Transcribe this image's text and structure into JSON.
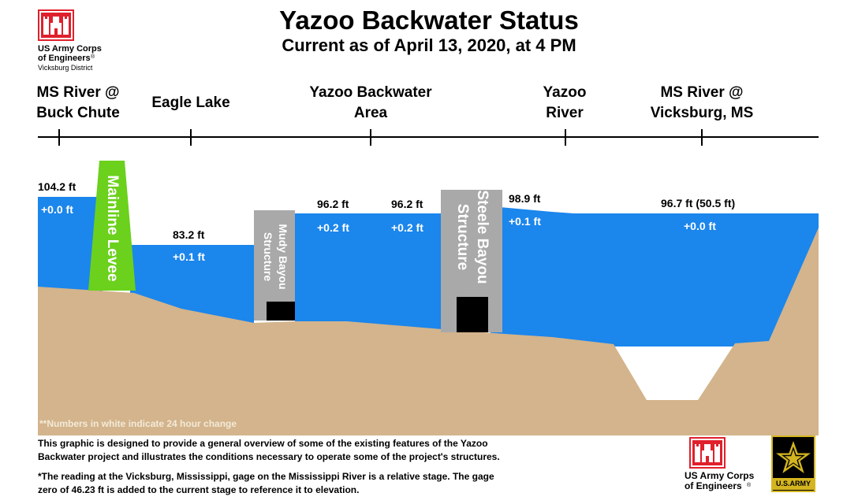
{
  "header": {
    "title": "Yazoo Backwater Status",
    "subtitle": "Current as of April 13, 2020, at 4 PM"
  },
  "logo_top": {
    "line1": "US Army Corps",
    "line2": "of Engineers",
    "line3": "Vicksburg District",
    "icon": "castle-icon"
  },
  "locations": [
    {
      "line1": "MS River @",
      "line2": "Buck Chute"
    },
    {
      "line1": "Eagle Lake",
      "line2": ""
    },
    {
      "line1": "Yazoo Backwater",
      "line2": "Area"
    },
    {
      "line1": "Yazoo",
      "line2": "River"
    },
    {
      "line1": "MS River @",
      "line2": "Vicksburg, MS"
    }
  ],
  "readings": [
    {
      "stage": "104.2 ft",
      "change": "+0.0 ft"
    },
    {
      "stage": "83.2 ft",
      "change": "+0.1 ft"
    },
    {
      "stage": "96.2 ft",
      "change": "+0.2 ft"
    },
    {
      "stage": "96.2 ft",
      "change": "+0.2 ft"
    },
    {
      "stage": "98.9 ft",
      "change": "+0.1 ft"
    },
    {
      "stage": "96.7 ft (50.5 ft)",
      "change": "+0.0 ft"
    }
  ],
  "structures": {
    "levee": "Mainline Levee",
    "muddy_line1": "Mudy Bayou",
    "muddy_line2": "Structure",
    "steele_line1": "Steele Bayou",
    "steele_line2": "Structure"
  },
  "note": "**Numbers in white indicate 24 hour change",
  "footer": {
    "para1_line1": "This graphic is designed to provide a general overview of some of the existing features of the Yazoo",
    "para1_line2": "Backwater project and illustrates the conditions necessary to operate some of the project's structures.",
    "para2_line1": "*The reading at the Vicksburg, Mississippi, gage on the Mississippi River is a relative stage. The gage",
    "para2_line2": "zero of 46.23 ft is added to the current stage to reference it to elevation."
  },
  "logo_bottom": {
    "line1": "US Army Corps",
    "line2": "of Engineers",
    "icon": "castle-icon"
  },
  "army_logo": {
    "label": "U.S.ARMY",
    "icon": "army-star-icon"
  },
  "colors": {
    "water": "#1b86ec",
    "ground": "#d3b48c",
    "levee": "#6bd11c",
    "structure": "#a9a9a9",
    "castle_red": "#e0202c"
  }
}
